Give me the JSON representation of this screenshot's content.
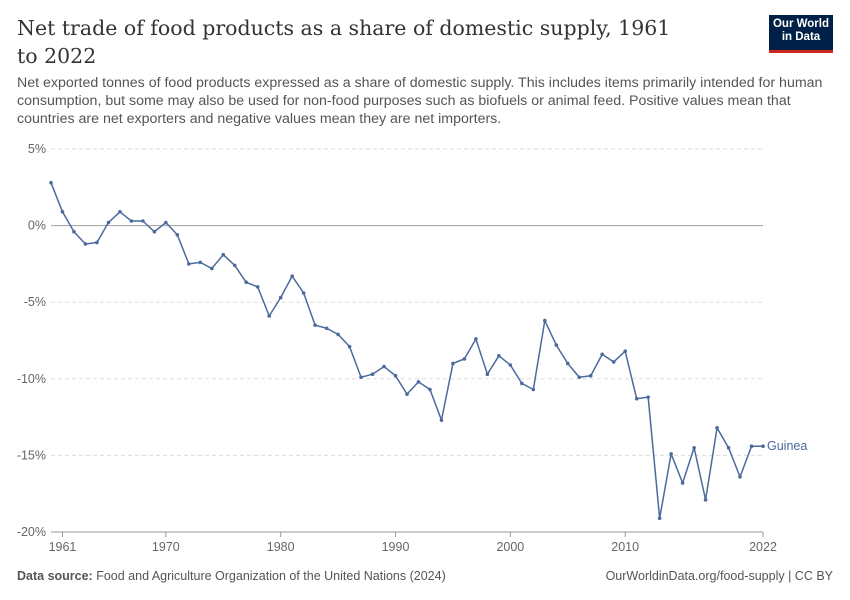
{
  "header": {
    "title": "Net trade of food products as a share of domestic supply, 1961 to 2022",
    "subtitle": "Net exported tonnes of food products expressed as a share of domestic supply. This includes items primarily intended for human consumption, but some may also be used for non-food purposes such as biofuels or animal feed. Positive values mean that countries are net exporters and negative values mean they are net importers.",
    "logo_line1": "Our World",
    "logo_line2": "in Data"
  },
  "footer": {
    "source_label": "Data source:",
    "source_text": "Food and Agriculture Organization of the United Nations (2024)",
    "credit": "OurWorldinData.org/food-supply | CC BY"
  },
  "colors": {
    "series": "#4c6a9c",
    "grid": "#dddddd",
    "zero_line": "#a1a1a1",
    "axis_text": "#666666"
  },
  "chart_data": {
    "type": "line",
    "title": "Net trade of food products as a share of domestic supply, 1961 to 2022",
    "xlabel": "",
    "ylabel": "",
    "xlim": [
      1960,
      2022
    ],
    "ylim": [
      -20,
      5
    ],
    "x_ticks": [
      1961,
      1970,
      1980,
      1990,
      2000,
      2010,
      2022
    ],
    "y_ticks": [
      5,
      0,
      -5,
      -10,
      -15,
      -20
    ],
    "y_tick_labels": [
      "5%",
      "0%",
      "-5%",
      "-10%",
      "-15%",
      "-20%"
    ],
    "grid": "horizontal dashed",
    "series": [
      {
        "name": "Guinea",
        "x": [
          1960,
          1961,
          1962,
          1963,
          1964,
          1965,
          1966,
          1967,
          1968,
          1969,
          1970,
          1971,
          1972,
          1973,
          1974,
          1975,
          1976,
          1977,
          1978,
          1979,
          1980,
          1981,
          1982,
          1983,
          1984,
          1985,
          1986,
          1987,
          1988,
          1989,
          1990,
          1991,
          1992,
          1993,
          1994,
          1995,
          1996,
          1997,
          1998,
          1999,
          2000,
          2001,
          2002,
          2003,
          2004,
          2005,
          2006,
          2007,
          2008,
          2009,
          2010,
          2011,
          2012,
          2013,
          2014,
          2015,
          2016,
          2017,
          2018,
          2019,
          2020,
          2021,
          2022
        ],
        "values": [
          2.8,
          0.9,
          -0.4,
          -1.2,
          -1.1,
          0.2,
          0.9,
          0.3,
          0.3,
          -0.4,
          0.2,
          -0.6,
          -2.5,
          -2.4,
          -2.8,
          -1.9,
          -2.6,
          -3.7,
          -4.0,
          -5.9,
          -4.7,
          -3.3,
          -4.4,
          -6.5,
          -6.7,
          -7.1,
          -7.9,
          -9.9,
          -9.7,
          -9.2,
          -9.8,
          -11.0,
          -10.2,
          -10.7,
          -12.7,
          -9.0,
          -8.7,
          -7.4,
          -9.7,
          -8.5,
          -9.1,
          -10.3,
          -10.7,
          -6.2,
          -7.8,
          -9.0,
          -9.9,
          -9.8,
          -8.4,
          -8.9,
          -8.2,
          -11.3,
          -11.2,
          -19.1,
          -14.9,
          -16.8,
          -14.5,
          -17.9,
          -13.2,
          -14.5,
          -16.4,
          -14.4,
          -14.4
        ]
      }
    ]
  }
}
